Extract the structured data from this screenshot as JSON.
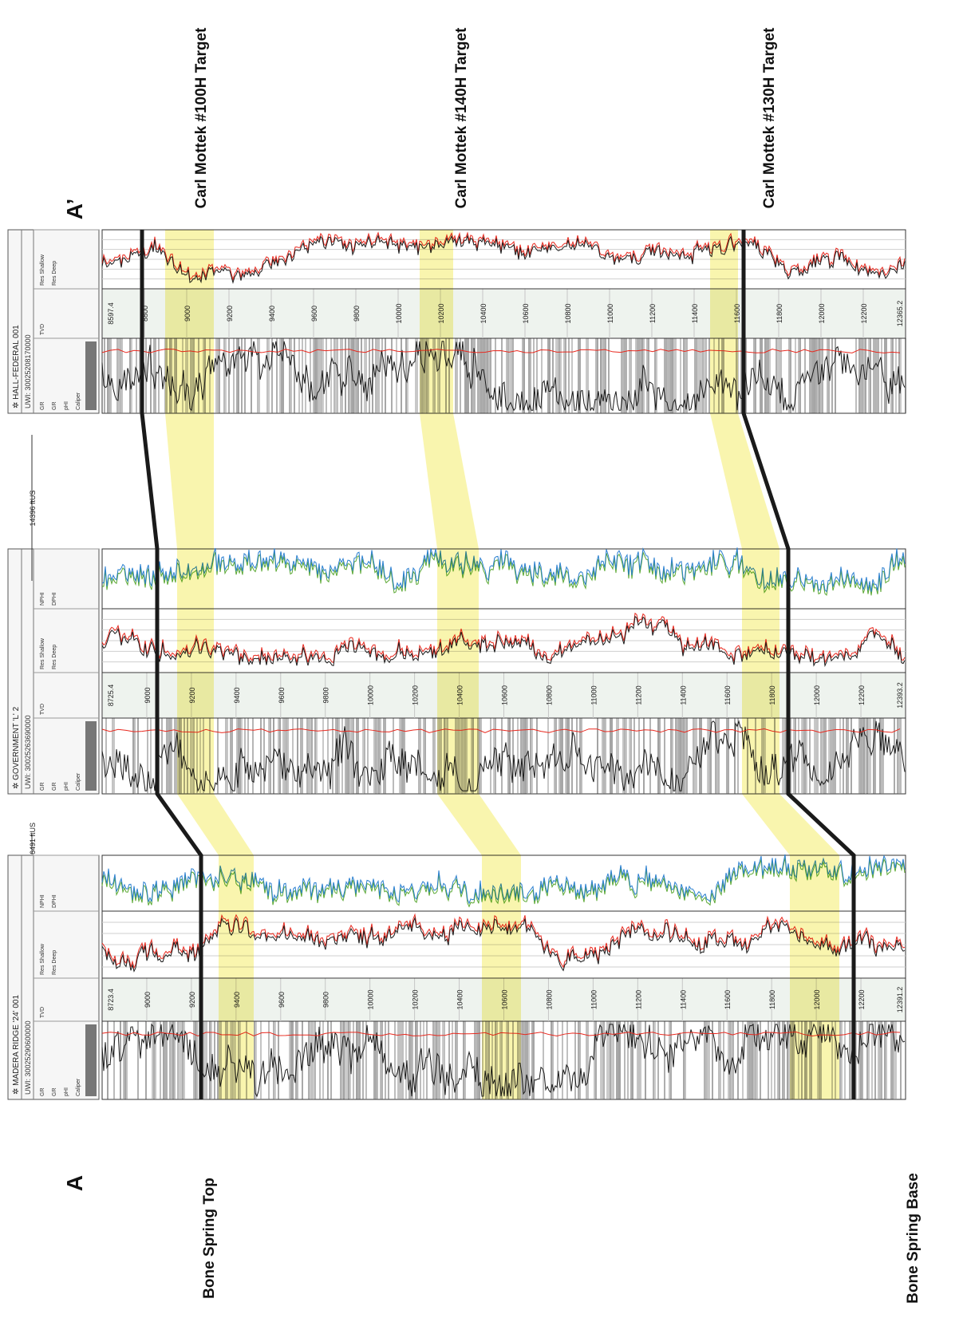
{
  "section": {
    "start_label": "A",
    "end_label": "A’",
    "annotations": {
      "bone_spring_top": "Bone Spring Top",
      "bone_spring_base": "Bone Spring Base",
      "target_100h": "Carl Mottek #100H Target",
      "target_140h": "Carl Mottek #140H Target",
      "target_130h": "Carl Mottek #130H Target"
    },
    "spacing": [
      {
        "label": "6491 ftUS"
      },
      {
        "label": "14396 ftUS"
      }
    ]
  },
  "wells": [
    {
      "name": "MADERA RIDGE '24' 001",
      "uwi_label": "UWI:",
      "uwi": "30025290600000",
      "depth_top": "8723.4",
      "depth_bottom": "12391.2",
      "depth_ticks": [
        "9000",
        "9200",
        "9400",
        "9600",
        "9800",
        "10000",
        "10200",
        "10400",
        "10600",
        "10800",
        "11000",
        "11200",
        "11400",
        "11600",
        "11800",
        "12000",
        "12200"
      ],
      "tracks": {
        "gr": [
          "GR",
          "GR",
          "pHI",
          "Caliper"
        ],
        "tvd": "TVD",
        "res": [
          "Res Shallow",
          "Res Deep"
        ],
        "por": [
          "NPHI",
          "DPHI"
        ]
      }
    },
    {
      "name": "GOVERNMENT 'L' 2",
      "uwi_label": "UWI:",
      "uwi": "30025263690000",
      "depth_top": "8725.4",
      "depth_bottom": "12393.2",
      "depth_ticks": [
        "9000",
        "9200",
        "9400",
        "9600",
        "9800",
        "10000",
        "10200",
        "10400",
        "10600",
        "10800",
        "11000",
        "11200",
        "11400",
        "11600",
        "11800",
        "12000",
        "12200"
      ],
      "tracks": {
        "gr": [
          "GR",
          "GR",
          "pHI",
          "Caliper"
        ],
        "tvd": "TVD",
        "res": [
          "Res Shallow",
          "Res Deep"
        ],
        "por": [
          "NPHI",
          "DPHI"
        ]
      }
    },
    {
      "name": "HALL-FEDERAL 001",
      "uwi_label": "UWI:",
      "uwi": "30025208170000",
      "depth_top": "8597.4",
      "depth_bottom": "12365.2",
      "depth_ticks": [
        "8800",
        "9000",
        "9200",
        "9400",
        "9600",
        "9800",
        "10000",
        "10200",
        "10400",
        "10600",
        "10800",
        "11000",
        "11200",
        "11400",
        "11600",
        "11800",
        "12000",
        "12200"
      ],
      "tracks": {
        "gr": [
          "GR",
          "GR",
          "pHI",
          "Caliper"
        ],
        "tvd": "TVD",
        "res": [
          "Res Shallow",
          "Res Deep"
        ]
      }
    }
  ],
  "colors": {
    "highlight": "#f7f39a",
    "correlation_line": "#1a1a1a",
    "gr_curve": "#1a1a1a",
    "res_shallow": "#e8281e",
    "nphi": "#2a7fd0",
    "dphi": "#5aa832"
  }
}
